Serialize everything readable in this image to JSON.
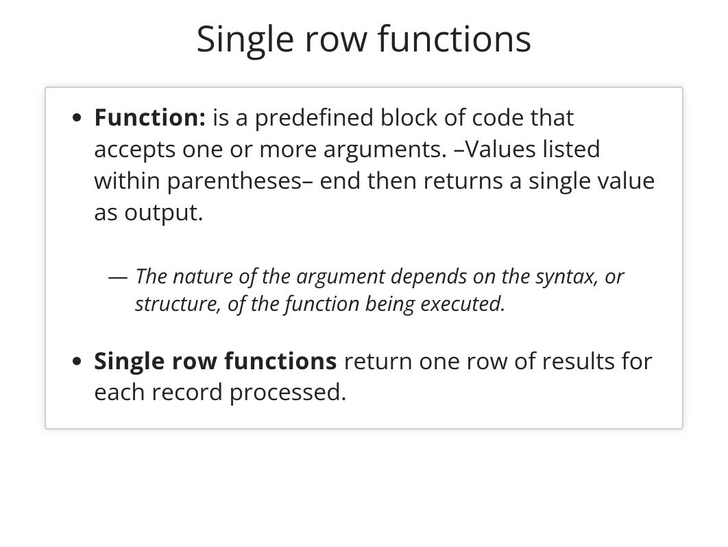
{
  "slide": {
    "title": "Single row functions",
    "bullets": [
      {
        "term": "Function: ",
        "body": "is a predefined block of code that accepts one or more arguments. –Values listed within parentheses– end then returns a single value as output.",
        "sub": [
          "The nature of the argument depends on the syntax, or structure, of the function being executed."
        ]
      },
      {
        "term": "Single row functions ",
        "body": "return one row of results for each record processed.",
        "sub": []
      }
    ],
    "styling": {
      "background_color": "#ffffff",
      "text_color": "#1a1a1a",
      "title_fontsize": 52,
      "body_fontsize": 34,
      "sub_fontsize": 30,
      "box_border_color": "#cfcfcf",
      "box_shadow": "0 0 12px rgba(0,0,0,0.12)"
    }
  }
}
